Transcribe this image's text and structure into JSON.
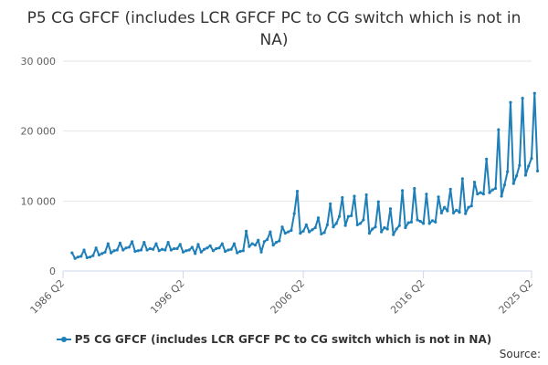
{
  "chart_data": {
    "type": "line",
    "title": "P5 CG GFCF (includes LCR GFCF PC to CG switch which is not in NA)",
    "xlabel": "",
    "ylabel": "",
    "ylim": [
      0,
      30000
    ],
    "yticks": [
      0,
      10000,
      20000,
      30000
    ],
    "ytick_labels": [
      "0",
      "10 000",
      "20 000",
      "30 000"
    ],
    "x_start": "1986 Q2",
    "x_end": "2025 Q2",
    "xtick_labels": [
      "1986 Q2",
      "1996 Q2",
      "2006 Q2",
      "2016 Q2",
      "2025 Q2"
    ],
    "xtick_indices": [
      0,
      40,
      80,
      120,
      156
    ],
    "series": [
      {
        "name": "P5 CG GFCF (includes LCR GFCF PC to CG switch which is not in NA)",
        "color": "#1f7fb8",
        "start_quarter": "1987 Q1",
        "values": [
          2600,
          1800,
          2000,
          2100,
          3000,
          1900,
          2000,
          2200,
          3300,
          2300,
          2500,
          2700,
          3900,
          2600,
          2900,
          3000,
          4000,
          3000,
          3300,
          3400,
          4200,
          2800,
          2900,
          3000,
          4100,
          3000,
          3200,
          3100,
          3900,
          2900,
          3100,
          3000,
          4100,
          3000,
          3200,
          3200,
          3800,
          2700,
          2900,
          3000,
          3400,
          2500,
          3800,
          2700,
          3100,
          3300,
          3600,
          2900,
          3200,
          3300,
          3900,
          2800,
          3000,
          3100,
          3900,
          2600,
          2800,
          2900,
          5700,
          3500,
          3900,
          3700,
          4400,
          2700,
          4200,
          4500,
          5600,
          3700,
          4100,
          4300,
          6300,
          5400,
          5600,
          5800,
          8200,
          11400,
          5400,
          5700,
          6600,
          5600,
          5900,
          6200,
          7600,
          5300,
          5500,
          6600,
          9600,
          6300,
          6800,
          7800,
          10500,
          6500,
          7800,
          7900,
          10700,
          6600,
          6800,
          7300,
          10900,
          5400,
          6000,
          6300,
          9900,
          5600,
          6200,
          6000,
          8900,
          5200,
          6000,
          6500,
          11500,
          6200,
          6900,
          7000,
          11800,
          7300,
          7100,
          6800,
          11000,
          6800,
          7200,
          7000,
          10600,
          8300,
          9100,
          8600,
          11700,
          8300,
          8700,
          8400,
          13200,
          8200,
          9100,
          9300,
          12700,
          11000,
          11200,
          11000,
          16000,
          11200,
          11600,
          11800,
          20200,
          10700,
          12300,
          14200,
          24100,
          12500,
          13600,
          15100,
          24700,
          13700,
          15000,
          16100,
          25400,
          14300
        ]
      }
    ]
  },
  "legend": {
    "label": "P5 CG GFCF (includes LCR GFCF PC to CG switch which is not in NA)"
  },
  "footer": {
    "source_label": "Source:"
  }
}
